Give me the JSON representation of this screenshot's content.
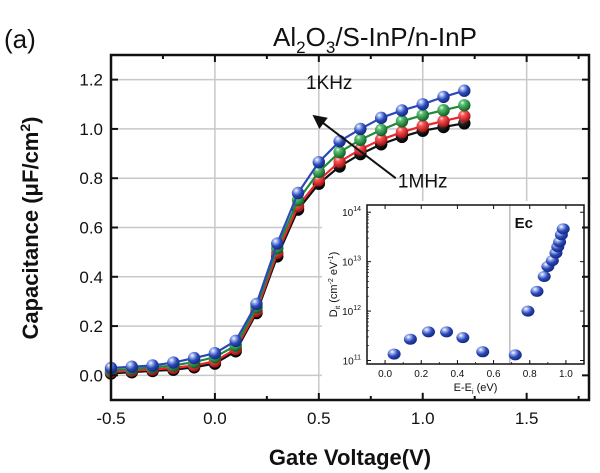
{
  "panel_label": "(a)",
  "chart_data": [
    {
      "type": "line",
      "title": "Al2O3/S-InP/n-InP",
      "title_parts": {
        "a": "Al",
        "sub1": "2",
        "b": "O",
        "sub2": "3",
        "c": "/S-InP/n-InP"
      },
      "xlabel": "Gate Voltage(V)",
      "ylabel": "Capacitance (μF/cm²)",
      "ylabel_parts": {
        "main": "Capacitance (μF/cm",
        "sup": "2",
        "end": ")"
      },
      "xlim": [
        -0.5,
        1.8
      ],
      "ylim": [
        -0.1,
        1.3
      ],
      "xticks": [
        -0.5,
        0.0,
        0.5,
        1.0,
        1.5
      ],
      "xtick_labels": [
        "-0.5",
        "0.0",
        "0.5",
        "1.0",
        "1.5"
      ],
      "yticks": [
        0.0,
        0.2,
        0.4,
        0.6,
        0.8,
        1.0,
        1.2
      ],
      "ytick_labels": [
        "0.0",
        "0.2",
        "0.4",
        "0.6",
        "0.8",
        "1.0",
        "1.2"
      ],
      "grid": true,
      "x": [
        -0.5,
        -0.4,
        -0.3,
        -0.2,
        -0.1,
        0.0,
        0.1,
        0.2,
        0.3,
        0.4,
        0.5,
        0.6,
        0.7,
        0.8,
        0.9,
        1.0,
        1.1,
        1.2
      ],
      "series": [
        {
          "name": "1MHz",
          "color": "#111111",
          "values": [
            0.02,
            0.025,
            0.03,
            0.035,
            0.045,
            0.06,
            0.11,
            0.265,
            0.495,
            0.685,
            0.79,
            0.86,
            0.91,
            0.95,
            0.98,
            1.005,
            1.02,
            1.035
          ]
        },
        {
          "name": "mid-frequency (red)",
          "color": "#e8262b",
          "values": [
            0.022,
            0.027,
            0.032,
            0.038,
            0.048,
            0.065,
            0.115,
            0.27,
            0.505,
            0.695,
            0.8,
            0.875,
            0.925,
            0.965,
            0.995,
            1.02,
            1.04,
            1.06
          ]
        },
        {
          "name": "mid-frequency (green)",
          "color": "#1e8a3c",
          "values": [
            0.025,
            0.03,
            0.036,
            0.044,
            0.058,
            0.078,
            0.125,
            0.28,
            0.52,
            0.715,
            0.83,
            0.91,
            0.96,
            1.0,
            1.035,
            1.06,
            1.08,
            1.1
          ]
        },
        {
          "name": "1KHz",
          "color": "#2b48b8",
          "values": [
            0.03,
            0.035,
            0.04,
            0.052,
            0.07,
            0.09,
            0.14,
            0.29,
            0.535,
            0.74,
            0.865,
            0.95,
            1.0,
            1.045,
            1.075,
            1.1,
            1.13,
            1.155
          ]
        }
      ],
      "annotations": [
        {
          "text": "1KHz",
          "x": 0.55,
          "y": 1.19
        },
        {
          "text": "1MHz",
          "x": 1.0,
          "y": 0.79
        },
        {
          "type": "arrow",
          "from": [
            0.87,
            0.8
          ],
          "to": [
            0.48,
            1.05
          ],
          "meaning": "increasing frequency from 1KHz to 1MHz"
        }
      ]
    },
    {
      "type": "scatter",
      "title": "",
      "xlabel": "E-Ei (eV)",
      "xlabel_parts": {
        "a": "E-E",
        "sub": "i",
        "b": " (eV)"
      },
      "ylabel": "Dit (cm-2 eV-1)",
      "ylabel_parts": {
        "a": "D",
        "sub": "it",
        "b": " (cm",
        "sup1": "-2",
        "c": " eV",
        "sup2": "-1",
        "d": ")"
      },
      "yscale": "log",
      "xlim": [
        -0.1,
        1.1
      ],
      "ylim": [
        85000000000.0,
        140000000000000.0
      ],
      "xticks": [
        0.0,
        0.2,
        0.4,
        0.6,
        0.8,
        1.0
      ],
      "xtick_labels": [
        "0.0",
        "0.2",
        "0.4",
        "0.6",
        "0.8",
        "1.0"
      ],
      "yticks": [
        100000000000.0,
        1000000000000.0,
        10000000000000.0,
        100000000000000.0
      ],
      "ytick_labels": [
        {
          "base": "10",
          "exp": "11"
        },
        {
          "base": "10",
          "exp": "12"
        },
        {
          "base": "10",
          "exp": "13"
        },
        {
          "base": "10",
          "exp": "14"
        }
      ],
      "marker_color": "#2b48b8",
      "points": [
        {
          "x": 0.05,
          "y": 135000000000.0
        },
        {
          "x": 0.14,
          "y": 270000000000.0
        },
        {
          "x": 0.24,
          "y": 380000000000.0
        },
        {
          "x": 0.34,
          "y": 380000000000.0
        },
        {
          "x": 0.43,
          "y": 290000000000.0
        },
        {
          "x": 0.54,
          "y": 150000000000.0
        },
        {
          "x": 0.72,
          "y": 130000000000.0
        },
        {
          "x": 0.79,
          "y": 1000000000000.0
        },
        {
          "x": 0.84,
          "y": 2500000000000.0
        },
        {
          "x": 0.88,
          "y": 5000000000000.0
        },
        {
          "x": 0.9,
          "y": 8000000000000.0
        },
        {
          "x": 0.925,
          "y": 10500000000000.0
        },
        {
          "x": 0.945,
          "y": 15000000000000.0
        },
        {
          "x": 0.955,
          "y": 20000000000000.0
        },
        {
          "x": 0.965,
          "y": 25000000000000.0
        },
        {
          "x": 0.975,
          "y": 35000000000000.0
        },
        {
          "x": 0.985,
          "y": 46000000000000.0
        }
      ],
      "vline": {
        "x": 0.69,
        "label": "Ec"
      },
      "legend": "none",
      "placement": "inset bottom-right of main plot"
    }
  ]
}
